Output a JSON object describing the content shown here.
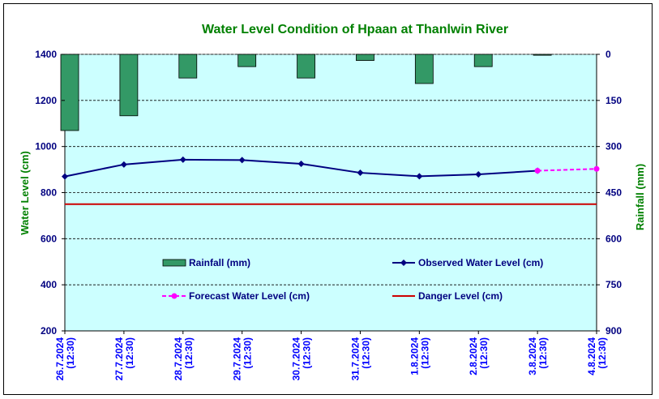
{
  "chart_data": {
    "type": "line",
    "title": "Water Level Condition of Hpaan at Thanlwin River",
    "ylabel": "Water Level (cm)",
    "y2label": "Rainfall (mm)",
    "ylim": [
      200,
      1400
    ],
    "yticks": [
      200,
      400,
      600,
      800,
      1000,
      1200,
      1400
    ],
    "y2lim": [
      0,
      900
    ],
    "y2ticks": [
      0,
      150,
      300,
      450,
      600,
      750,
      900
    ],
    "y2_inverted": true,
    "grid": "horizontal dashed",
    "categories": [
      [
        "26.7.2024",
        "(12:30)"
      ],
      [
        "27.7.2024",
        "(12:30)"
      ],
      [
        "28.7.2024",
        "(12:30)"
      ],
      [
        "29.7.2024",
        "(12:30)"
      ],
      [
        "30.7.2024",
        "(12:30)"
      ],
      [
        "31.7.2024",
        "(12:30)"
      ],
      [
        "1.8.2024",
        "(12:30)"
      ],
      [
        "2.8.2024",
        "(12:30)"
      ],
      [
        "3.8.2024",
        "(12:30)"
      ],
      [
        "4.8.2024",
        "(12:30)"
      ]
    ],
    "rainfall": {
      "name": "Rainfall (mm)",
      "color": "#339966",
      "values": [
        248,
        200,
        77,
        40,
        77,
        20,
        95,
        40,
        3
      ]
    },
    "observed": {
      "name": "Observed Water Level (cm)",
      "color": "#000080",
      "values": [
        870,
        922,
        943,
        941,
        925,
        886,
        871,
        879,
        895
      ]
    },
    "forecast": {
      "name": "Forecast Water Level (cm)",
      "color": "#ff00ff",
      "start_index": 8,
      "values": [
        895,
        903
      ]
    },
    "danger": {
      "name": "Danger Level (cm)",
      "color": "#cc0000",
      "value": 750
    },
    "colors": {
      "plot_bg": "#ccffff",
      "title": "#008000",
      "axis_title": "#008000",
      "tick_labels": "#000080",
      "xtick_labels": "#0000ff"
    }
  }
}
